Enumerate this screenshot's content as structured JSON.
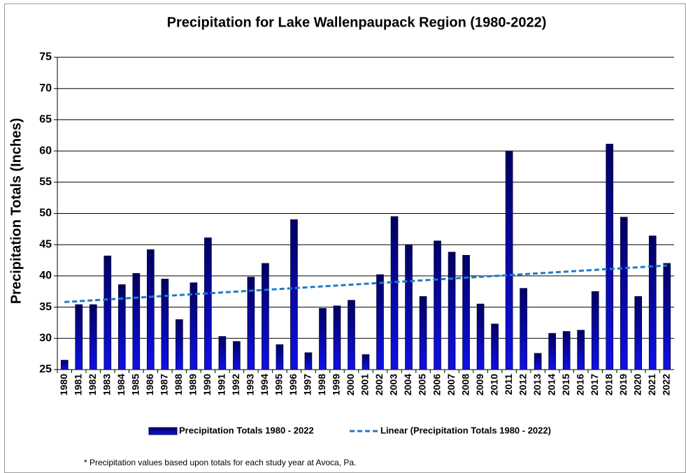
{
  "chart_data": {
    "type": "bar",
    "title": "Precipitation for Lake Wallenpaupack Region (1980-2022)",
    "y_label": "Precipitation Totals (Inches)",
    "footnote": "* Precipitation values based upon totals for each study year at Avoca, Pa.",
    "categories": [
      "1980",
      "1981",
      "1982",
      "1983",
      "1984",
      "1985",
      "1986",
      "1987",
      "1988",
      "1989",
      "1990",
      "1991",
      "1992",
      "1993",
      "1994",
      "1995",
      "1996",
      "1997",
      "1998",
      "1999",
      "2000",
      "2001",
      "2002",
      "2003",
      "2004",
      "2005",
      "2006",
      "2007",
      "2008",
      "2009",
      "2010",
      "2011",
      "2012",
      "2013",
      "2014",
      "2015",
      "2016",
      "2017",
      "2018",
      "2019",
      "2020",
      "2021",
      "2022"
    ],
    "series": [
      {
        "name": "Precipitation Totals 1980 - 2022",
        "color": "#1010e8",
        "values": [
          26.5,
          35.4,
          35.4,
          43.2,
          38.6,
          40.4,
          44.2,
          39.5,
          33.0,
          38.9,
          46.1,
          30.3,
          29.5,
          39.8,
          42.0,
          29.0,
          49.0,
          27.7,
          34.8,
          35.2,
          36.1,
          27.4,
          40.2,
          49.5,
          45.0,
          36.7,
          45.6,
          43.8,
          43.3,
          35.5,
          32.3,
          60.0,
          38.0,
          27.6,
          30.8,
          31.1,
          31.3,
          37.5,
          61.1,
          49.4,
          36.7,
          46.4,
          42.0
        ]
      }
    ],
    "trendline": {
      "name": "Linear (Precipitation Totals 1980 - 2022)",
      "color": "#1f7ac8"
    },
    "ylim": [
      25,
      75
    ],
    "yticks": [
      25,
      30,
      35,
      40,
      45,
      50,
      55,
      60,
      65,
      70,
      75
    ],
    "grid": true
  }
}
